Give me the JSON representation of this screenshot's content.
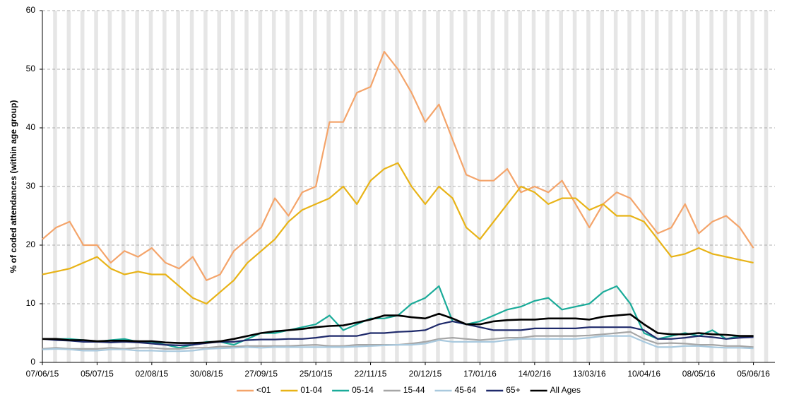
{
  "chart_data": {
    "type": "line",
    "y_label": "% of coded attendances (within age group)",
    "x": [
      "2015-06-07",
      "2015-06-14",
      "2015-06-21",
      "2015-06-28",
      "2015-07-05",
      "2015-07-12",
      "2015-07-19",
      "2015-07-26",
      "2015-08-02",
      "2015-08-09",
      "2015-08-16",
      "2015-08-23",
      "2015-08-30",
      "2015-09-06",
      "2015-09-13",
      "2015-09-20",
      "2015-09-27",
      "2015-10-04",
      "2015-10-11",
      "2015-10-18",
      "2015-10-25",
      "2015-11-01",
      "2015-11-08",
      "2015-11-15",
      "2015-11-22",
      "2015-11-29",
      "2015-12-06",
      "2015-12-13",
      "2015-12-20",
      "2015-12-27",
      "2016-01-03",
      "2016-01-10",
      "2016-01-17",
      "2016-01-24",
      "2016-01-31",
      "2016-02-07",
      "2016-02-14",
      "2016-02-21",
      "2016-02-28",
      "2016-03-06",
      "2016-03-13",
      "2016-03-20",
      "2016-03-27",
      "2016-04-03",
      "2016-04-10",
      "2016-04-17",
      "2016-04-24",
      "2016-05-01",
      "2016-05-08",
      "2016-05-15",
      "2016-05-22",
      "2016-05-29",
      "2016-06-05"
    ],
    "series": [
      {
        "name": "<01",
        "color": "#f4a46a",
        "values": [
          21,
          23,
          24,
          20,
          20,
          17,
          19,
          18,
          19.5,
          17,
          16,
          18,
          14,
          15,
          19,
          21,
          23,
          28,
          25,
          29,
          30,
          41,
          41,
          46,
          47,
          53,
          50,
          46,
          41,
          44,
          38,
          32,
          31,
          31,
          33,
          29,
          30,
          29,
          31,
          27,
          23,
          27,
          29,
          28,
          25,
          22,
          23,
          27,
          22,
          24,
          25,
          23,
          19.5
        ]
      },
      {
        "name": "01-04",
        "color": "#e8b317",
        "values": [
          15,
          15.5,
          16,
          17,
          18,
          16,
          15,
          15.5,
          15,
          15,
          13,
          11,
          10,
          12,
          14,
          17,
          19,
          21,
          24,
          26,
          27,
          28,
          30,
          27,
          31,
          33,
          34,
          30,
          27,
          30,
          28,
          23,
          21,
          24,
          27,
          30,
          29,
          27,
          28,
          28,
          26,
          27,
          25,
          25,
          24,
          21,
          18,
          18.5,
          19.5,
          18.5,
          18,
          17.5,
          17
        ]
      },
      {
        "name": "05-14",
        "color": "#1aab99",
        "values": [
          4,
          4,
          4,
          3.8,
          3.5,
          3.8,
          4,
          3.5,
          3.5,
          3,
          2.5,
          3,
          3.5,
          3.5,
          3,
          4,
          5,
          5,
          5.5,
          6,
          6.5,
          8,
          5.5,
          6.5,
          7.5,
          7.5,
          8,
          10,
          11,
          13,
          7,
          6.5,
          7,
          8,
          9,
          9.5,
          10.5,
          11,
          9,
          9.5,
          10,
          12,
          13,
          10,
          5,
          4,
          4.5,
          5,
          4.5,
          5.5,
          4,
          4.5,
          4.5
        ]
      },
      {
        "name": "15-44",
        "color": "#a6a6a6",
        "values": [
          2.3,
          2.5,
          2.3,
          2.3,
          2.3,
          2.5,
          2.3,
          2.5,
          2.5,
          2.3,
          2.3,
          2.5,
          2.5,
          2.7,
          2.7,
          2.8,
          2.8,
          2.8,
          2.8,
          2.9,
          3,
          2.8,
          2.8,
          3,
          3,
          3,
          3,
          3.2,
          3.5,
          4,
          4.2,
          4,
          3.8,
          4,
          4.2,
          4.2,
          4.5,
          4.5,
          4.5,
          4.5,
          4.6,
          4.8,
          5,
          5.2,
          4,
          3.2,
          3.3,
          3.2,
          3,
          3,
          2.8,
          2.8,
          2.6
        ]
      },
      {
        "name": "45-64",
        "color": "#a9c9de",
        "values": [
          2.2,
          2.3,
          2.2,
          2,
          2,
          2.2,
          2.2,
          2,
          2,
          1.9,
          1.9,
          2,
          2.3,
          2.4,
          2.5,
          2.6,
          2.5,
          2.6,
          2.6,
          2.6,
          2.6,
          2.6,
          2.6,
          2.7,
          2.8,
          2.9,
          3,
          3,
          3.2,
          3.8,
          3.5,
          3.5,
          3.5,
          3.5,
          3.8,
          4,
          4,
          4,
          4,
          4,
          4.2,
          4.5,
          4.5,
          4.5,
          3.5,
          2.6,
          2.6,
          2.8,
          2.8,
          2.6,
          2.5,
          2.5,
          2.4
        ]
      },
      {
        "name": "65+",
        "color": "#1f2a6b",
        "values": [
          4,
          3.8,
          3.7,
          3.5,
          3.5,
          3.4,
          3.5,
          3.4,
          3.2,
          3,
          2.9,
          3,
          3.3,
          3.5,
          3.5,
          3.8,
          3.9,
          3.9,
          4,
          4,
          4.2,
          4.5,
          4.5,
          4.5,
          5,
          5,
          5.2,
          5.3,
          5.5,
          6.5,
          7,
          6.5,
          6,
          5.5,
          5.5,
          5.5,
          5.8,
          5.8,
          5.8,
          5.8,
          6,
          6,
          6,
          6,
          5.5,
          4,
          4,
          4.2,
          4.5,
          4.3,
          4,
          4.2,
          4.3
        ]
      },
      {
        "name": "All Ages",
        "color": "#000000",
        "values": [
          4,
          4,
          3.8,
          3.8,
          3.6,
          3.7,
          3.7,
          3.6,
          3.6,
          3.4,
          3.3,
          3.3,
          3.4,
          3.6,
          4,
          4.5,
          5,
          5.3,
          5.5,
          5.7,
          6,
          6.2,
          6.3,
          6.8,
          7.3,
          8,
          8,
          7.7,
          7.5,
          8.3,
          7.5,
          6.5,
          6.5,
          7,
          7.2,
          7.3,
          7.3,
          7.5,
          7.5,
          7.5,
          7.3,
          7.8,
          8,
          8.2,
          6.5,
          5,
          4.8,
          4.8,
          5,
          4.8,
          4.7,
          4.5,
          4.5
        ]
      }
    ],
    "xlim": [
      "2015-06-07",
      "2016-06-16"
    ],
    "xticks": [
      {
        "value": "2015-06-07",
        "label": "07/06/15"
      },
      {
        "value": "2015-07-05",
        "label": "05/07/15"
      },
      {
        "value": "2015-08-02",
        "label": "02/08/15"
      },
      {
        "value": "2015-08-30",
        "label": "30/08/15"
      },
      {
        "value": "2015-09-27",
        "label": "27/09/15"
      },
      {
        "value": "2015-10-25",
        "label": "25/10/15"
      },
      {
        "value": "2015-11-22",
        "label": "22/11/15"
      },
      {
        "value": "2015-12-20",
        "label": "20/12/15"
      },
      {
        "value": "2016-01-17",
        "label": "17/01/16"
      },
      {
        "value": "2016-02-14",
        "label": "14/02/16"
      },
      {
        "value": "2016-03-13",
        "label": "13/03/16"
      },
      {
        "value": "2016-04-10",
        "label": "10/04/16"
      },
      {
        "value": "2016-05-08",
        "label": "08/05/16"
      },
      {
        "value": "2016-06-05",
        "label": "05/06/16"
      }
    ],
    "ylim": [
      0,
      60
    ],
    "yticks": [
      0,
      10,
      20,
      30,
      40,
      50,
      60
    ],
    "grid": true,
    "legend": "bottom"
  }
}
